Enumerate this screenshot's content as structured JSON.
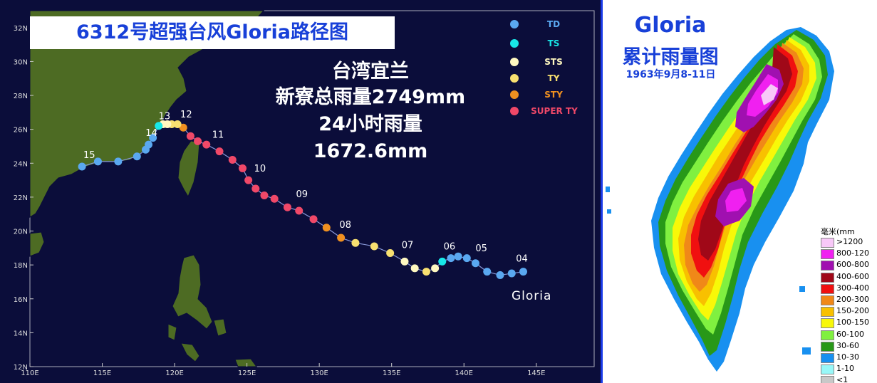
{
  "map_title": "6312号超强台风Gloria路径图",
  "stats": {
    "line1": "台湾宜兰",
    "line2": "新寮总雨量2749mm",
    "line3": "24小时雨量",
    "line4": "1672.6mm"
  },
  "axes": {
    "lon_ticks": [
      "110E",
      "115E",
      "120E",
      "125E",
      "130E",
      "135E",
      "140E",
      "145E"
    ],
    "lon_values": [
      110,
      115,
      120,
      125,
      130,
      135,
      140,
      145
    ],
    "lat_ticks": [
      "12N",
      "14N",
      "16N",
      "18N",
      "20N",
      "22N",
      "24N",
      "26N",
      "28N",
      "30N",
      "32N"
    ],
    "lat_values": [
      12,
      14,
      16,
      18,
      20,
      22,
      24,
      26,
      28,
      30,
      32
    ],
    "lon_range": [
      110,
      149
    ],
    "lat_range": [
      12,
      33
    ]
  },
  "intensity_legend": [
    {
      "label": "TD",
      "color": "#5aa8f0"
    },
    {
      "label": "TS",
      "color": "#18e8e8"
    },
    {
      "label": "STS",
      "color": "#fff8c0"
    },
    {
      "label": "TY",
      "color": "#f8e070"
    },
    {
      "label": "STY",
      "color": "#f09020"
    },
    {
      "label": "SUPER TY",
      "color": "#f04868"
    }
  ],
  "storm_name_label": "Gloria",
  "track": [
    {
      "lon": 144.1,
      "lat": 17.6,
      "cat": "TD"
    },
    {
      "lon": 143.3,
      "lat": 17.5,
      "cat": "TD"
    },
    {
      "lon": 142.5,
      "lat": 17.4,
      "cat": "TD"
    },
    {
      "lon": 141.6,
      "lat": 17.6,
      "cat": "TD"
    },
    {
      "lon": 140.8,
      "lat": 18.1,
      "cat": "TD"
    },
    {
      "lon": 140.2,
      "lat": 18.4,
      "cat": "TD"
    },
    {
      "lon": 139.6,
      "lat": 18.5,
      "cat": "TD"
    },
    {
      "lon": 139.1,
      "lat": 18.4,
      "cat": "TD"
    },
    {
      "lon": 138.5,
      "lat": 18.2,
      "cat": "TS"
    },
    {
      "lon": 138.0,
      "lat": 17.8,
      "cat": "STS"
    },
    {
      "lon": 137.4,
      "lat": 17.6,
      "cat": "TY"
    },
    {
      "lon": 136.6,
      "lat": 17.8,
      "cat": "STS"
    },
    {
      "lon": 135.9,
      "lat": 18.2,
      "cat": "STS"
    },
    {
      "lon": 134.9,
      "lat": 18.7,
      "cat": "TY"
    },
    {
      "lon": 133.8,
      "lat": 19.1,
      "cat": "TY"
    },
    {
      "lon": 132.5,
      "lat": 19.3,
      "cat": "TY"
    },
    {
      "lon": 131.5,
      "lat": 19.6,
      "cat": "STY"
    },
    {
      "lon": 130.5,
      "lat": 20.2,
      "cat": "STY"
    },
    {
      "lon": 129.6,
      "lat": 20.7,
      "cat": "SUPER TY"
    },
    {
      "lon": 128.6,
      "lat": 21.2,
      "cat": "SUPER TY"
    },
    {
      "lon": 127.8,
      "lat": 21.4,
      "cat": "SUPER TY"
    },
    {
      "lon": 126.9,
      "lat": 21.9,
      "cat": "SUPER TY"
    },
    {
      "lon": 126.2,
      "lat": 22.1,
      "cat": "SUPER TY"
    },
    {
      "lon": 125.6,
      "lat": 22.5,
      "cat": "SUPER TY"
    },
    {
      "lon": 125.1,
      "lat": 23.0,
      "cat": "SUPER TY"
    },
    {
      "lon": 124.7,
      "lat": 23.7,
      "cat": "SUPER TY"
    },
    {
      "lon": 124.0,
      "lat": 24.2,
      "cat": "SUPER TY"
    },
    {
      "lon": 123.1,
      "lat": 24.7,
      "cat": "SUPER TY"
    },
    {
      "lon": 122.2,
      "lat": 25.1,
      "cat": "SUPER TY"
    },
    {
      "lon": 121.6,
      "lat": 25.3,
      "cat": "SUPER TY"
    },
    {
      "lon": 121.1,
      "lat": 25.6,
      "cat": "SUPER TY"
    },
    {
      "lon": 120.6,
      "lat": 26.1,
      "cat": "STY"
    },
    {
      "lon": 120.2,
      "lat": 26.3,
      "cat": "TY"
    },
    {
      "lon": 119.8,
      "lat": 26.3,
      "cat": "TY"
    },
    {
      "lon": 119.5,
      "lat": 26.3,
      "cat": "STS"
    },
    {
      "lon": 119.2,
      "lat": 26.3,
      "cat": "STS"
    },
    {
      "lon": 118.9,
      "lat": 26.2,
      "cat": "TS"
    },
    {
      "lon": 118.5,
      "lat": 25.5,
      "cat": "TD"
    },
    {
      "lon": 118.2,
      "lat": 25.1,
      "cat": "TD"
    },
    {
      "lon": 118.0,
      "lat": 24.8,
      "cat": "TD"
    },
    {
      "lon": 117.4,
      "lat": 24.4,
      "cat": "TD"
    },
    {
      "lon": 116.1,
      "lat": 24.1,
      "cat": "TD"
    },
    {
      "lon": 114.7,
      "lat": 24.1,
      "cat": "TD"
    },
    {
      "lon": 113.6,
      "lat": 23.8,
      "cat": "TD"
    }
  ],
  "day_labels": [
    {
      "text": "04",
      "lon": 144.0,
      "lat": 18.2
    },
    {
      "text": "05",
      "lon": 141.2,
      "lat": 18.8
    },
    {
      "text": "06",
      "lon": 139.0,
      "lat": 18.9
    },
    {
      "text": "07",
      "lon": 136.1,
      "lat": 19.0
    },
    {
      "text": "08",
      "lon": 131.8,
      "lat": 20.2
    },
    {
      "text": "09",
      "lon": 128.8,
      "lat": 22.0
    },
    {
      "text": "10",
      "lon": 125.9,
      "lat": 23.5
    },
    {
      "text": "11",
      "lon": 123.0,
      "lat": 25.5
    },
    {
      "text": "12",
      "lon": 120.8,
      "lat": 26.7
    },
    {
      "text": "13",
      "lon": 119.3,
      "lat": 26.6
    },
    {
      "text": "14",
      "lon": 118.4,
      "lat": 25.6
    },
    {
      "text": "15",
      "lon": 114.1,
      "lat": 24.3
    }
  ],
  "rain_title_1": "Gloria",
  "rain_title_2": "累计雨量图",
  "rain_date": "1963年9月8-11日",
  "rain_legend_unit": "毫米(mm",
  "rain_legend": [
    {
      "label": ">1200",
      "color": "#f8c8f8"
    },
    {
      "label": "800-120",
      "color": "#f020f0"
    },
    {
      "label": "600-800",
      "color": "#a010b0"
    },
    {
      "label": "400-600",
      "color": "#a00818"
    },
    {
      "label": "300-400",
      "color": "#f01010"
    },
    {
      "label": "200-300",
      "color": "#f08818"
    },
    {
      "label": "150-200",
      "color": "#f8c000"
    },
    {
      "label": "100-150",
      "color": "#f8f808"
    },
    {
      "label": "60-100",
      "color": "#80f040"
    },
    {
      "label": "30-60",
      "color": "#289818"
    },
    {
      "label": "10-30",
      "color": "#1890f0"
    },
    {
      "label": "1-10",
      "color": "#98f8f8"
    },
    {
      "label": "<1",
      "color": "#c8c8c8"
    }
  ]
}
